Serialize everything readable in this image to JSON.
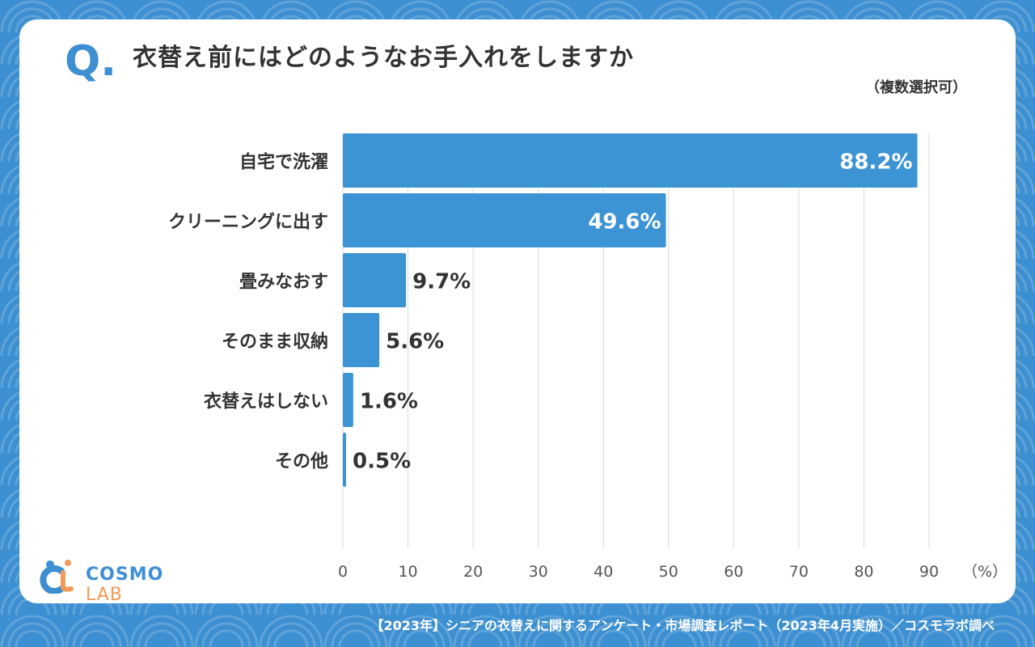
{
  "header": {
    "q_mark": "Q.",
    "question": "衣替え前にはどのようなお手入れをしますか",
    "note": "（複数選択可）"
  },
  "logo": {
    "name_main": "COSMO ",
    "name_sub": "LAB"
  },
  "footer": {
    "source": "【2023年】シニアの衣替えに関するアンケート・市場調査レポート（2023年4月実施）／コスモラボ調べ"
  },
  "colors": {
    "bar": "#3d94d4",
    "background": "#3c8fd0",
    "text": "#333333"
  },
  "chart_data": {
    "type": "bar",
    "orientation": "horizontal",
    "categories": [
      "自宅で洗濯",
      "クリーニングに出す",
      "畳みなおす",
      "そのまま収納",
      "衣替えはしない",
      "その他"
    ],
    "values": [
      88.2,
      49.6,
      9.7,
      5.6,
      1.6,
      0.5
    ],
    "value_labels": [
      "88.2%",
      "49.6%",
      "9.7%",
      "5.6%",
      "1.6%",
      "0.5%"
    ],
    "xticks": [
      "0",
      "10",
      "20",
      "30",
      "40",
      "50",
      "60",
      "70",
      "80",
      "90"
    ],
    "xunit": "（%）",
    "xlim": [
      0,
      90
    ],
    "grid": true
  }
}
